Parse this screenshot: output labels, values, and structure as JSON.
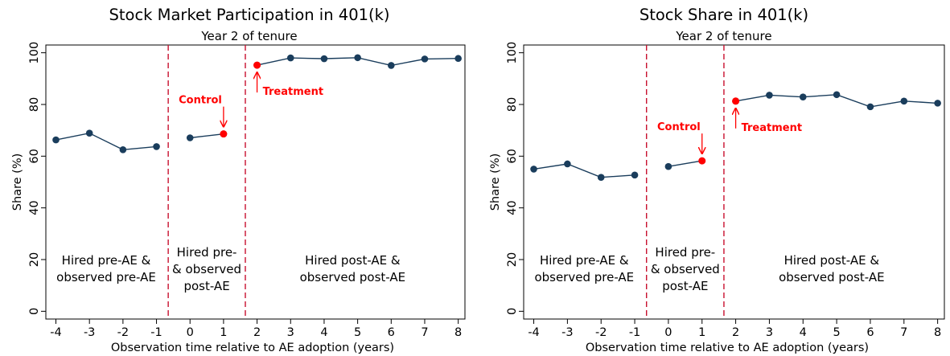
{
  "colors": {
    "series": "#1a3d5c",
    "highlight": "#ff0000",
    "divider": "#c8102e",
    "annotation": "#ff0000"
  },
  "chart_data": [
    {
      "type": "line",
      "title": "Stock Market Participation in 401(k)",
      "subtitle": "Year 2 of tenure",
      "xlabel": "Observation time relative to AE adoption (years)",
      "ylabel": "Share (%)",
      "xlim": [
        -4,
        8
      ],
      "ylim": [
        0,
        100
      ],
      "xticks": [
        -4,
        -3,
        -2,
        -1,
        0,
        1,
        2,
        3,
        4,
        5,
        6,
        7,
        8
      ],
      "yticks": [
        0,
        20,
        40,
        60,
        80,
        100
      ],
      "grid": false,
      "segments": [
        {
          "x": [
            -4,
            -3,
            -2,
            -1
          ],
          "y": [
            66.3,
            68.9,
            62.5,
            63.7
          ]
        },
        {
          "x": [
            0,
            1
          ],
          "y": [
            67.1,
            68.6
          ]
        },
        {
          "x": [
            2,
            3,
            4,
            5,
            6,
            7,
            8
          ],
          "y": [
            95.2,
            98.0,
            97.7,
            98.1,
            95.1,
            97.6,
            97.8
          ]
        }
      ],
      "highlights": [
        {
          "label": "Control",
          "x": 1,
          "y": 68.6
        },
        {
          "label": "Treatment",
          "x": 2,
          "y": 95.2
        }
      ],
      "dividers": [
        -0.65,
        1.65
      ],
      "region_labels": [
        {
          "lines": [
            "Hired pre-AE &",
            "observed pre-AE"
          ],
          "x": -2.5,
          "y": 15
        },
        {
          "lines": [
            "Hired pre-",
            "& observed",
            "post-AE"
          ],
          "x": 0.5,
          "y": 15
        },
        {
          "lines": [
            "Hired post-AE &",
            "observed post-AE"
          ],
          "x": 4.85,
          "y": 15
        }
      ]
    },
    {
      "type": "line",
      "title": "Stock Share in 401(k)",
      "subtitle": "Year 2 of tenure",
      "xlabel": "Observation time relative to AE adoption (years)",
      "ylabel": "Share (%)",
      "xlim": [
        -4,
        8
      ],
      "ylim": [
        0,
        100
      ],
      "xticks": [
        -4,
        -3,
        -2,
        -1,
        0,
        1,
        2,
        3,
        4,
        5,
        6,
        7,
        8
      ],
      "yticks": [
        0,
        20,
        40,
        60,
        80,
        100
      ],
      "grid": false,
      "segments": [
        {
          "x": [
            -4,
            -3,
            -2,
            -1
          ],
          "y": [
            55.0,
            57.0,
            51.8,
            52.7
          ]
        },
        {
          "x": [
            0,
            1
          ],
          "y": [
            56.0,
            58.2
          ]
        },
        {
          "x": [
            2,
            3,
            4,
            5,
            6,
            7,
            8
          ],
          "y": [
            81.3,
            83.6,
            82.9,
            83.8,
            79.1,
            81.3,
            80.5
          ]
        }
      ],
      "highlights": [
        {
          "label": "Control",
          "x": 1,
          "y": 58.2
        },
        {
          "label": "Treatment",
          "x": 2,
          "y": 81.3
        }
      ],
      "dividers": [
        -0.65,
        1.65
      ],
      "region_labels": [
        {
          "lines": [
            "Hired pre-AE &",
            "observed pre-AE"
          ],
          "x": -2.5,
          "y": 15
        },
        {
          "lines": [
            "Hired pre-",
            "& observed",
            "post-AE"
          ],
          "x": 0.5,
          "y": 15
        },
        {
          "lines": [
            "Hired post-AE &",
            "observed post-AE"
          ],
          "x": 4.85,
          "y": 15
        }
      ]
    }
  ]
}
